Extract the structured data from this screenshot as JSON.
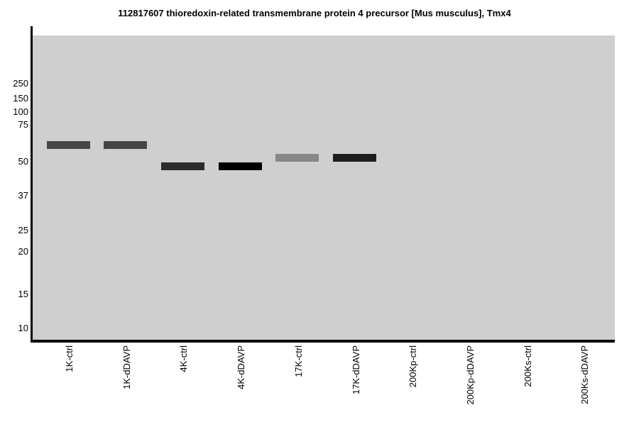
{
  "title": "112817607 thioredoxin-related transmembrane protein 4 precursor [Mus musculus], Tmx4",
  "colors": {
    "plot_background": "#cfcfcf",
    "axis": "#000000",
    "text": "#000000"
  },
  "chart_data": {
    "type": "scatter",
    "variant": "western-blot-gel-bands",
    "title": "112817607 thioredoxin-related transmembrane protein 4 precursor [Mus musculus], Tmx4",
    "y_axis": {
      "unit": "kDa",
      "scale": "gel-migration (log-like)",
      "ticks": [
        250,
        150,
        100,
        75,
        50,
        37,
        25,
        20,
        15,
        10
      ]
    },
    "x_axis": {
      "lanes": [
        "1K-ctrl",
        "1K-dDAVP",
        "4K-ctrl",
        "4K-dDAVP",
        "17K-ctrl",
        "17K-dDAVP",
        "200Kp-ctrl",
        "200Kp-dDAVP",
        "200Ks-ctrl",
        "200Ks-dDAVP"
      ]
    },
    "bands": [
      {
        "lane": "1K-ctrl",
        "lane_index": 0,
        "apparent_mw_kda": 60,
        "intensity": "dark",
        "color": "#464646"
      },
      {
        "lane": "1K-dDAVP",
        "lane_index": 1,
        "apparent_mw_kda": 60,
        "intensity": "dark",
        "color": "#454545"
      },
      {
        "lane": "4K-ctrl",
        "lane_index": 2,
        "apparent_mw_kda": 48,
        "intensity": "very-dark",
        "color": "#2b2b2b"
      },
      {
        "lane": "4K-dDAVP",
        "lane_index": 3,
        "apparent_mw_kda": 48,
        "intensity": "black",
        "color": "#000000"
      },
      {
        "lane": "17K-ctrl",
        "lane_index": 4,
        "apparent_mw_kda": 52,
        "intensity": "medium",
        "color": "#878787"
      },
      {
        "lane": "17K-dDAVP",
        "lane_index": 5,
        "apparent_mw_kda": 52,
        "intensity": "very-dark",
        "color": "#1d1d1d"
      }
    ],
    "empty_lanes": [
      "200Kp-ctrl",
      "200Kp-dDAVP",
      "200Ks-ctrl",
      "200Ks-dDAVP"
    ],
    "legend": "none",
    "grid": "off",
    "plot_background": "#cfcfcf"
  }
}
